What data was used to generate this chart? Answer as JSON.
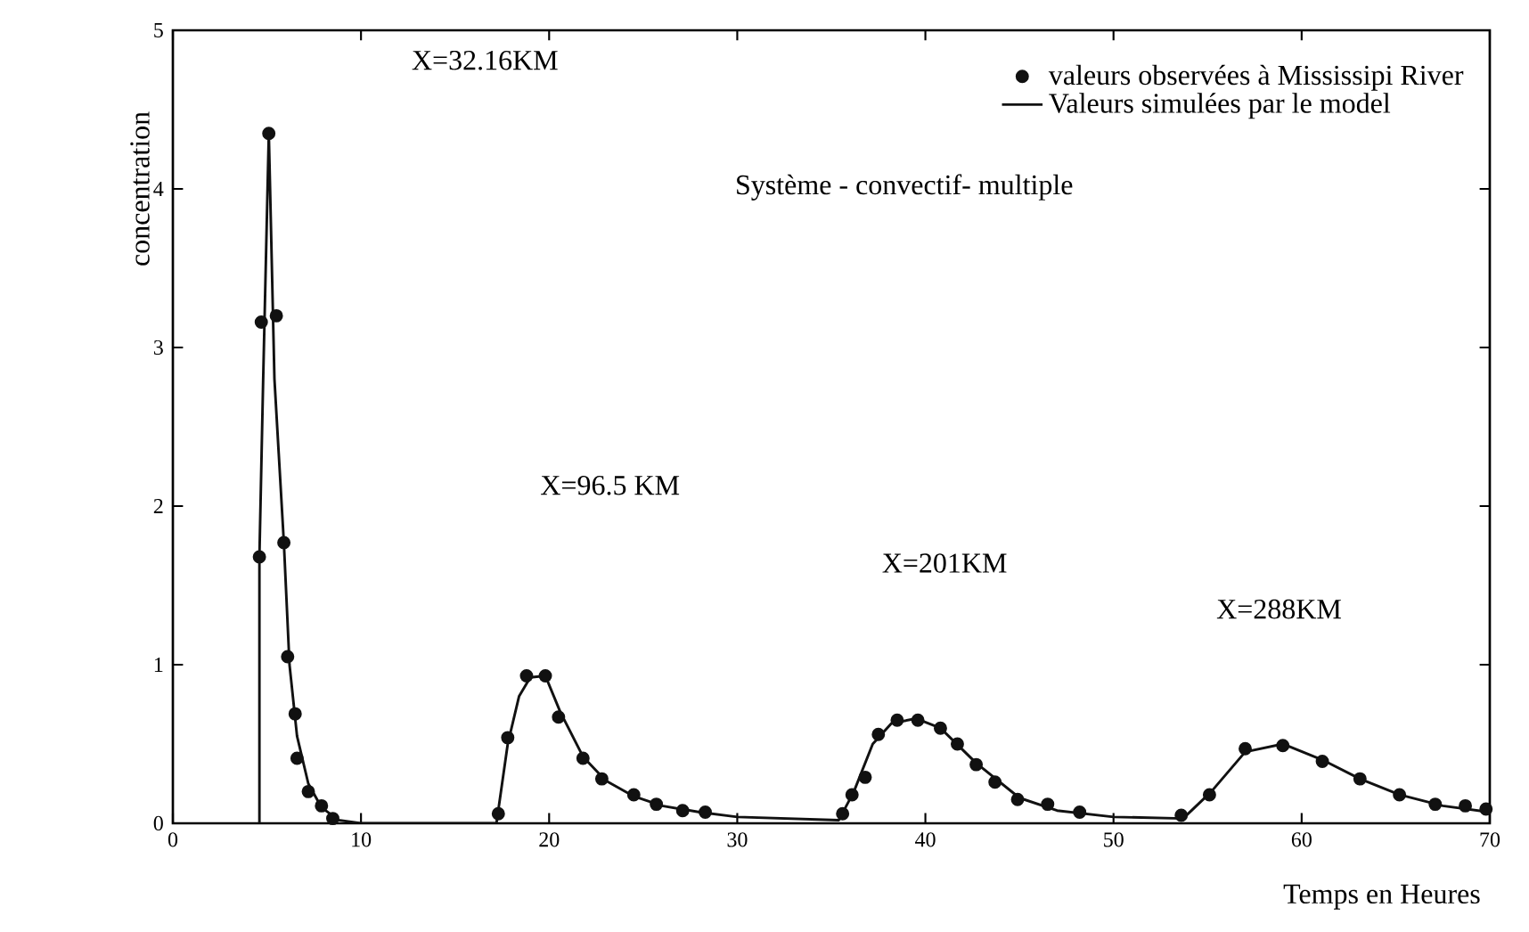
{
  "chart_data": {
    "type": "scatter",
    "xlabel": "Temps en Heures",
    "ylabel": "concentration",
    "xlim": [
      0,
      70
    ],
    "ylim": [
      0,
      5
    ],
    "xticks": [
      0,
      10,
      20,
      30,
      40,
      50,
      60,
      70
    ],
    "yticks": [
      0,
      1,
      2,
      3,
      4,
      5
    ],
    "grid": false,
    "legend": "top right",
    "series": [
      {
        "name": "valeurs observées à Mississipi River",
        "marker": "circle",
        "color": "#111111",
        "x": [
          4.6,
          4.7,
          5.1,
          5.5,
          5.9,
          6.1,
          6.5,
          6.6,
          7.2,
          7.9,
          8.5,
          17.3,
          17.8,
          18.8,
          19.8,
          20.5,
          21.8,
          22.8,
          24.5,
          25.7,
          27.1,
          28.3,
          35.6,
          36.1,
          36.8,
          37.5,
          38.5,
          39.6,
          40.8,
          41.7,
          42.7,
          43.7,
          44.9,
          46.5,
          48.2,
          53.6,
          55.1,
          57.0,
          59.0,
          61.1,
          63.1,
          65.2,
          67.1,
          68.7,
          69.8
        ],
        "values": [
          1.68,
          3.16,
          4.35,
          3.2,
          1.77,
          1.05,
          0.69,
          0.41,
          0.2,
          0.11,
          0.03,
          0.06,
          0.54,
          0.93,
          0.93,
          0.67,
          0.41,
          0.28,
          0.18,
          0.12,
          0.08,
          0.07,
          0.06,
          0.18,
          0.29,
          0.56,
          0.65,
          0.65,
          0.6,
          0.5,
          0.37,
          0.26,
          0.15,
          0.12,
          0.07,
          0.05,
          0.18,
          0.47,
          0.49,
          0.39,
          0.28,
          0.18,
          0.12,
          0.11,
          0.09
        ]
      },
      {
        "name": "Valeurs simulées par le model",
        "type": "line",
        "marker": "none",
        "color": "#111111",
        "x": [
          4.6,
          4.6,
          4.8,
          5.1,
          5.4,
          5.9,
          6.2,
          6.6,
          7.2,
          7.9,
          8.8,
          10,
          17.2,
          17.8,
          18.4,
          19.0,
          19.8,
          20.6,
          21.8,
          23,
          24.5,
          26,
          28,
          30,
          35.4,
          36.2,
          37.2,
          38.2,
          39.5,
          40.8,
          42.7,
          45,
          47,
          50,
          53.7,
          55.2,
          57,
          59,
          61.1,
          63.1,
          65.2,
          67.5,
          70
        ],
        "values": [
          0,
          1.68,
          2.8,
          4.35,
          2.8,
          1.77,
          1.0,
          0.55,
          0.25,
          0.1,
          0.02,
          0,
          0,
          0.5,
          0.8,
          0.92,
          0.93,
          0.7,
          0.42,
          0.27,
          0.17,
          0.11,
          0.07,
          0.04,
          0.02,
          0.2,
          0.5,
          0.63,
          0.66,
          0.6,
          0.38,
          0.16,
          0.08,
          0.04,
          0.03,
          0.2,
          0.45,
          0.5,
          0.4,
          0.28,
          0.18,
          0.11,
          0.07
        ]
      }
    ],
    "annotations": [
      "Système - convectif- multiple",
      "X=32.16KM",
      "X=96.5 KM",
      "X=201KM",
      "X=288KM"
    ]
  }
}
